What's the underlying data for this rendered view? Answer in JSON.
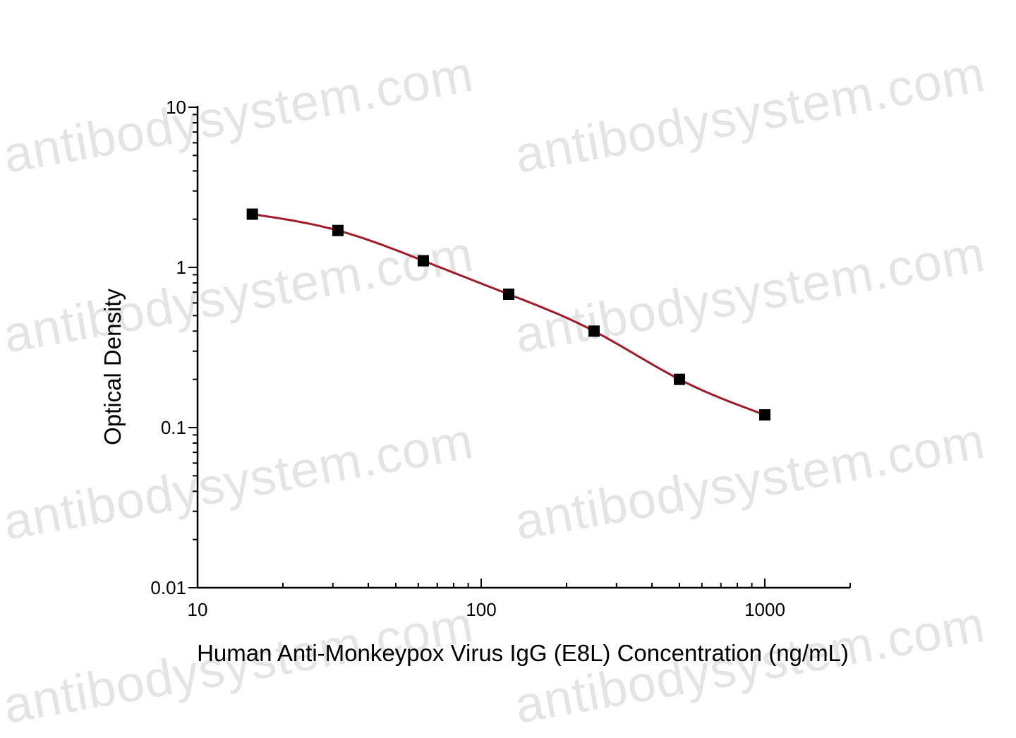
{
  "watermark": {
    "text": "antibodysystem.com",
    "color": "#e4e4e4"
  },
  "chart_data": {
    "type": "scatter",
    "title": "",
    "xlabel": "Human Anti-Monkeypox Virus IgG (E8L) Concentration (ng/mL)",
    "ylabel": "Optical Density",
    "x_scale": "log",
    "y_scale": "log",
    "xlim": [
      10,
      2000
    ],
    "ylim": [
      0.01,
      10
    ],
    "x_tick_labels": [
      "10",
      "100",
      "1000"
    ],
    "y_tick_labels": [
      "0.01",
      "0.1",
      "1",
      "10"
    ],
    "grid": false,
    "legend": "none",
    "series": [
      {
        "x": [
          15.6,
          31.25,
          62.5,
          125,
          250,
          500,
          1000
        ],
        "y": [
          2.15,
          1.7,
          1.1,
          0.68,
          0.4,
          0.2,
          0.12
        ],
        "marker": "square",
        "marker_color": "#000000",
        "fit_curve_color": "#a31929"
      }
    ]
  }
}
